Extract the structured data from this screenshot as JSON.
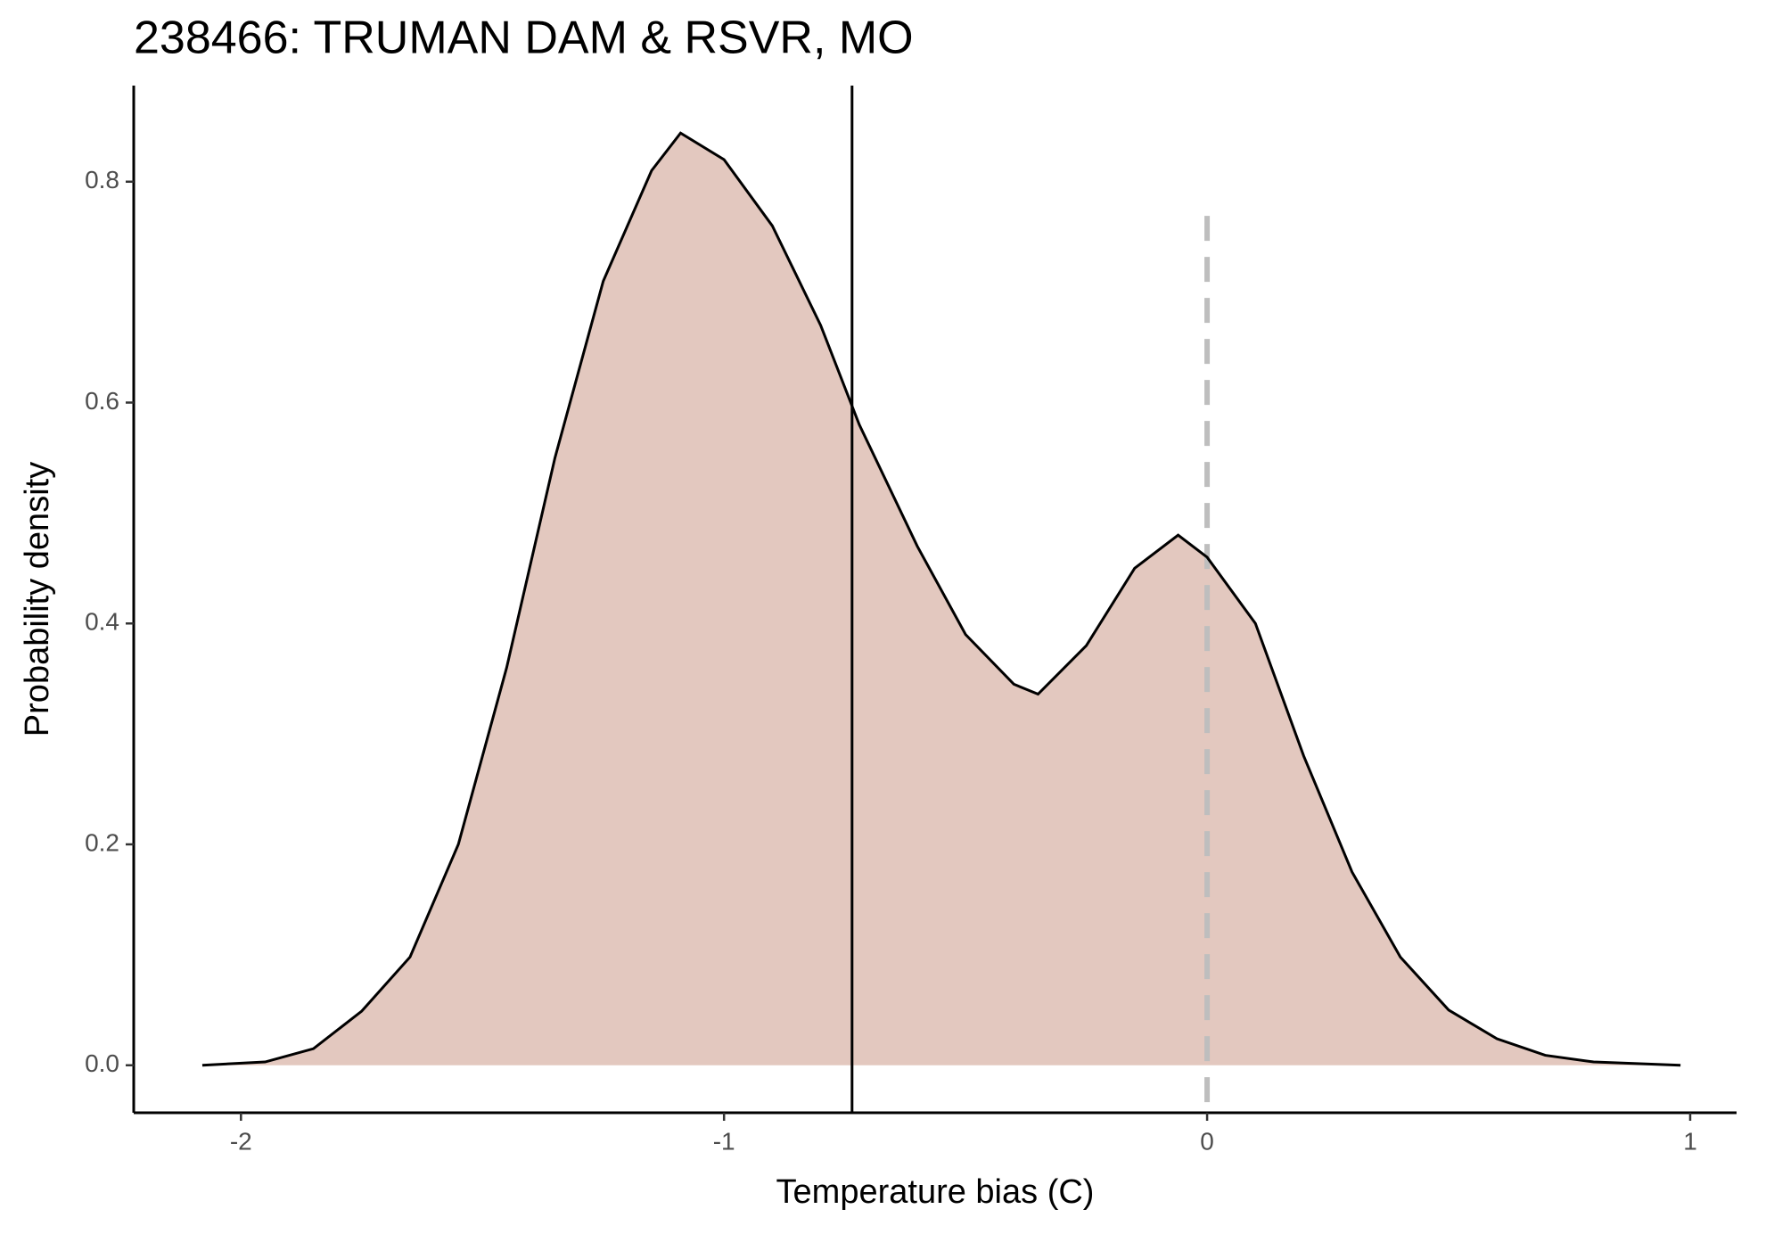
{
  "chart_data": {
    "type": "area",
    "title": "238466: TRUMAN DAM & RSVR, MO",
    "xlabel": "Temperature bias (C)",
    "ylabel": "Probability density",
    "x": [
      -2.08,
      -1.95,
      -1.85,
      -1.75,
      -1.65,
      -1.55,
      -1.45,
      -1.35,
      -1.25,
      -1.15,
      -1.09,
      -1.0,
      -0.9,
      -0.8,
      -0.72,
      -0.6,
      -0.5,
      -0.4,
      -0.35,
      -0.25,
      -0.15,
      -0.06,
      0.0,
      0.1,
      0.2,
      0.3,
      0.4,
      0.5,
      0.6,
      0.7,
      0.8,
      0.98
    ],
    "values": [
      0.0,
      0.003,
      0.015,
      0.049,
      0.098,
      0.2,
      0.36,
      0.55,
      0.71,
      0.81,
      0.844,
      0.82,
      0.76,
      0.67,
      0.58,
      0.47,
      0.39,
      0.345,
      0.336,
      0.38,
      0.45,
      0.48,
      0.46,
      0.4,
      0.28,
      0.175,
      0.098,
      0.05,
      0.024,
      0.009,
      0.003,
      0.0
    ],
    "color": "#e3c8bf",
    "line_color": "#000000",
    "reference_lines": [
      {
        "value": -0.735,
        "style": "solid",
        "color": "#000000"
      },
      {
        "value": 0,
        "style": "dashed",
        "color": "#bebebe"
      }
    ],
    "xlim": [
      -2.222,
      1.096
    ],
    "ylim": [
      -0.043,
      0.887
    ],
    "xticks": [
      -2,
      -1,
      0,
      1
    ],
    "yticks": [
      {
        "value": 0,
        "label": "0.0"
      },
      {
        "value": 0.2,
        "label": "0.2"
      },
      {
        "value": 0.4,
        "label": "0.4"
      },
      {
        "value": 0.6,
        "label": "0.6"
      },
      {
        "value": 0.8,
        "label": "0.8"
      }
    ]
  }
}
